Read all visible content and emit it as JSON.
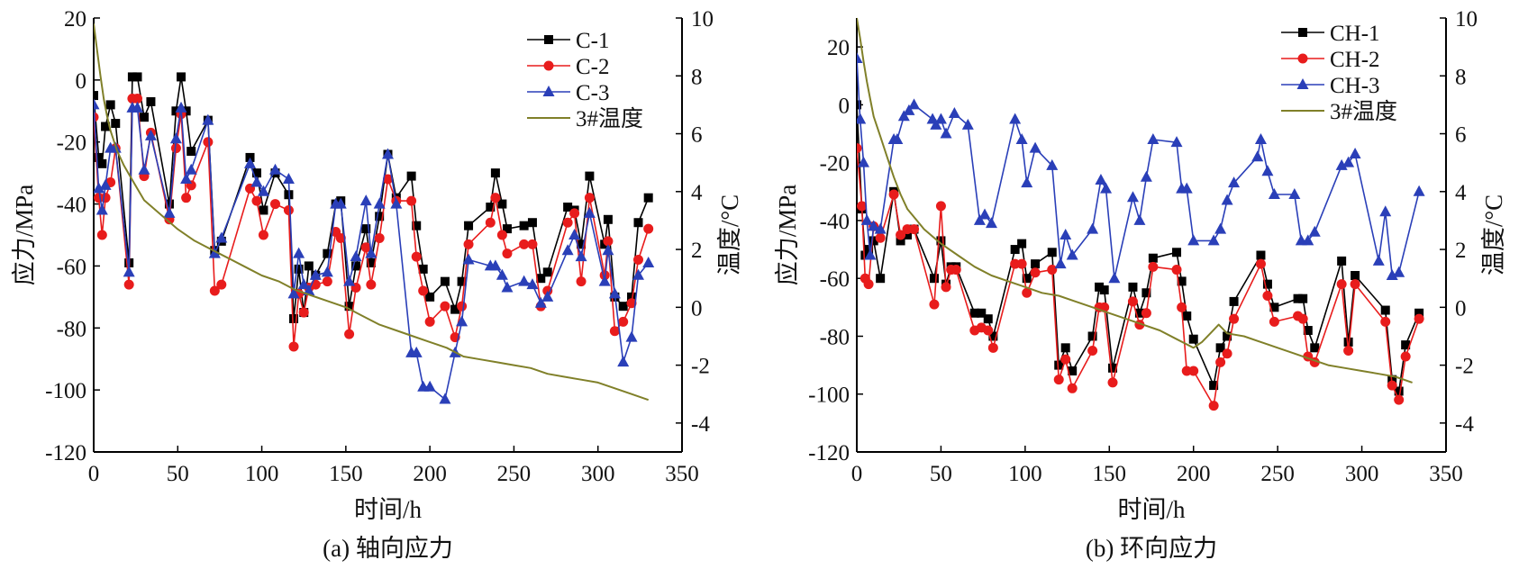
{
  "chart_data": [
    {
      "type": "line",
      "caption": "(a) 轴向应力",
      "xlabel": "时间/h",
      "ylabel": "应力/MPa",
      "y2label": "温度/°C",
      "xlim": [
        0,
        350
      ],
      "ylim": [
        -120,
        20
      ],
      "y2lim": [
        -5,
        10
      ],
      "xticks": [
        0,
        50,
        100,
        150,
        200,
        250,
        300,
        350
      ],
      "yticks": [
        20,
        0,
        -20,
        -40,
        -60,
        -80,
        -100,
        -120
      ],
      "y2ticks": [
        10,
        8,
        6,
        4,
        2,
        0,
        -2,
        -4
      ],
      "legend_position": "top-right",
      "grid": false,
      "series": [
        {
          "name": "C-1",
          "color": "#000000",
          "marker": "square",
          "axis": "left",
          "x": [
            0,
            3,
            5,
            7,
            10,
            13,
            21,
            23,
            26,
            30,
            34,
            45,
            49,
            52,
            55,
            58,
            68,
            72,
            76,
            93,
            97,
            101,
            108,
            116,
            119,
            122,
            125,
            128,
            132,
            139,
            144,
            147,
            152,
            156,
            162,
            165,
            170,
            175,
            180,
            189,
            192,
            196,
            200,
            209,
            215,
            219,
            223,
            236,
            239,
            243,
            246,
            256,
            261,
            266,
            270,
            282,
            286,
            290,
            295,
            304,
            306,
            310,
            315,
            320,
            324,
            330
          ],
          "y": [
            -5,
            -25,
            -27,
            -15,
            -8,
            -14,
            -59,
            1,
            1,
            -12,
            -7,
            -40,
            -10,
            1,
            -10,
            -23,
            -13,
            -55,
            -52,
            -25,
            -30,
            -42,
            -30,
            -37,
            -77,
            -61,
            -75,
            -60,
            -63,
            -56,
            -40,
            -39,
            -73,
            -60,
            -48,
            -59,
            -44,
            -24,
            -38,
            -31,
            -47,
            -61,
            -70,
            -65,
            -74,
            -65,
            -47,
            -41,
            -30,
            -40,
            -48,
            -47,
            -46,
            -64,
            -62,
            -41,
            -42,
            -53,
            -31,
            -53,
            -45,
            -70,
            -73,
            -70,
            -46,
            -38
          ]
        },
        {
          "name": "C-2",
          "color": "#e81c1c",
          "marker": "circle",
          "axis": "left",
          "x": [
            0,
            3,
            5,
            7,
            10,
            13,
            21,
            23,
            26,
            30,
            34,
            45,
            49,
            52,
            55,
            58,
            68,
            72,
            76,
            93,
            97,
            101,
            108,
            116,
            119,
            122,
            125,
            128,
            132,
            139,
            144,
            147,
            152,
            156,
            162,
            165,
            170,
            175,
            180,
            189,
            192,
            196,
            200,
            209,
            215,
            219,
            223,
            236,
            239,
            243,
            246,
            256,
            261,
            266,
            270,
            282,
            286,
            290,
            295,
            304,
            306,
            310,
            315,
            320,
            324,
            330
          ],
          "y": [
            -12,
            -38,
            -50,
            -38,
            -33,
            -22,
            -66,
            -6,
            -6,
            -31,
            -17,
            -45,
            -22,
            -11,
            -38,
            -34,
            -20,
            -68,
            -66,
            -35,
            -39,
            -50,
            -40,
            -42,
            -86,
            -69,
            -75,
            -67,
            -66,
            -65,
            -49,
            -51,
            -82,
            -67,
            -54,
            -66,
            -51,
            -32,
            -39,
            -39,
            -57,
            -68,
            -78,
            -73,
            -83,
            -73,
            -53,
            -46,
            -38,
            -50,
            -56,
            -53,
            -53,
            -73,
            -68,
            -46,
            -43,
            -65,
            -38,
            -63,
            -52,
            -81,
            -78,
            -72,
            -58,
            -48
          ]
        },
        {
          "name": "C-3",
          "color": "#2a3fb8",
          "marker": "triangle",
          "axis": "left",
          "x": [
            0,
            3,
            5,
            7,
            10,
            13,
            21,
            23,
            26,
            30,
            34,
            45,
            49,
            52,
            55,
            58,
            68,
            72,
            76,
            93,
            97,
            101,
            108,
            116,
            119,
            122,
            125,
            128,
            132,
            139,
            144,
            147,
            152,
            156,
            162,
            165,
            170,
            175,
            180,
            189,
            192,
            196,
            200,
            209,
            215,
            219,
            223,
            236,
            239,
            243,
            246,
            256,
            261,
            266,
            270,
            282,
            286,
            290,
            295,
            304,
            306,
            310,
            315,
            320,
            324,
            330
          ],
          "y": [
            -8,
            -35,
            -42,
            -34,
            -22,
            -22,
            -62,
            -9,
            -9,
            -29,
            -18,
            -43,
            -19,
            -9,
            -32,
            -29,
            -13,
            -56,
            -51,
            -27,
            -33,
            -36,
            -29,
            -32,
            -69,
            -56,
            -66,
            -68,
            -63,
            -62,
            -40,
            -40,
            -65,
            -57,
            -39,
            -56,
            -40,
            -24,
            -40,
            -88,
            -88,
            -99,
            -99,
            -103,
            -88,
            -78,
            -58,
            -60,
            -60,
            -63,
            -67,
            -65,
            -66,
            -72,
            -70,
            -55,
            -50,
            -57,
            -43,
            -65,
            -55,
            -69,
            -91,
            -83,
            -63,
            -59
          ]
        },
        {
          "name": "3#温度",
          "color": "#808029",
          "marker": "none",
          "axis": "right",
          "x": [
            0,
            2,
            4,
            6,
            8,
            10,
            14,
            18,
            22,
            26,
            30,
            40,
            50,
            60,
            70,
            80,
            90,
            100,
            110,
            120,
            130,
            140,
            150,
            160,
            170,
            180,
            190,
            200,
            210,
            220,
            230,
            240,
            250,
            260,
            270,
            280,
            290,
            300,
            310,
            320,
            330
          ],
          "y": [
            9.8,
            8.9,
            8.0,
            7.2,
            6.6,
            6.1,
            5.4,
            4.9,
            4.5,
            4.1,
            3.7,
            3.2,
            2.7,
            2.3,
            2.0,
            1.7,
            1.4,
            1.1,
            0.9,
            0.6,
            0.4,
            0.2,
            0.0,
            -0.3,
            -0.6,
            -0.8,
            -1.0,
            -1.2,
            -1.4,
            -1.7,
            -1.8,
            -1.9,
            -2.0,
            -2.1,
            -2.3,
            -2.4,
            -2.5,
            -2.6,
            -2.8,
            -3.0,
            -3.2
          ]
        }
      ]
    },
    {
      "type": "line",
      "caption": "(b) 环向应力",
      "xlabel": "时间/h",
      "ylabel": "应力/MPa",
      "y2label": "温度/°C",
      "xlim": [
        0,
        350
      ],
      "ylim": [
        -120,
        30
      ],
      "y2lim": [
        -5,
        10
      ],
      "xticks": [
        0,
        50,
        100,
        150,
        200,
        250,
        300,
        350
      ],
      "yticks": [
        20,
        0,
        -20,
        -40,
        -60,
        -80,
        -100,
        -120
      ],
      "y2ticks": [
        10,
        8,
        6,
        4,
        2,
        0,
        -2,
        -4
      ],
      "legend_position": "top-right",
      "grid": false,
      "series": [
        {
          "name": "CH-1",
          "color": "#000000",
          "marker": "square",
          "axis": "left",
          "x": [
            0,
            3,
            5,
            7,
            10,
            14,
            22,
            26,
            30,
            34,
            46,
            50,
            53,
            56,
            59,
            70,
            74,
            78,
            81,
            94,
            98,
            101,
            106,
            116,
            120,
            124,
            128,
            140,
            144,
            147,
            152,
            164,
            168,
            172,
            176,
            190,
            193,
            196,
            200,
            212,
            216,
            220,
            224,
            240,
            244,
            248,
            262,
            265,
            268,
            272,
            288,
            292,
            296,
            314,
            318,
            322,
            326,
            334
          ],
          "y": [
            0,
            -36,
            -52,
            -50,
            -47,
            -60,
            -30,
            -47,
            -45,
            -43,
            -60,
            -47,
            -62,
            -56,
            -56,
            -72,
            -72,
            -74,
            -80,
            -50,
            -48,
            -60,
            -55,
            -51,
            -90,
            -84,
            -92,
            -80,
            -63,
            -64,
            -91,
            -63,
            -72,
            -65,
            -53,
            -51,
            -61,
            -73,
            -81,
            -97,
            -84,
            -80,
            -68,
            -52,
            -62,
            -70,
            -67,
            -67,
            -78,
            -84,
            -54,
            -82,
            -59,
            -71,
            -95,
            -99,
            -83,
            -72
          ]
        },
        {
          "name": "CH-2",
          "color": "#e81c1c",
          "marker": "circle",
          "axis": "left",
          "x": [
            0,
            3,
            5,
            7,
            10,
            14,
            22,
            26,
            30,
            34,
            46,
            50,
            53,
            56,
            59,
            70,
            74,
            78,
            81,
            94,
            98,
            101,
            106,
            116,
            120,
            124,
            128,
            140,
            144,
            147,
            152,
            164,
            168,
            172,
            176,
            190,
            193,
            196,
            200,
            212,
            216,
            220,
            224,
            240,
            244,
            248,
            262,
            265,
            268,
            272,
            288,
            292,
            296,
            314,
            318,
            322,
            326,
            334
          ],
          "y": [
            -15,
            -35,
            -60,
            -62,
            -42,
            -46,
            -31,
            -45,
            -43,
            -43,
            -69,
            -35,
            -63,
            -57,
            -57,
            -78,
            -77,
            -78,
            -84,
            -55,
            -55,
            -65,
            -58,
            -57,
            -95,
            -88,
            -98,
            -85,
            -70,
            -70,
            -96,
            -68,
            -76,
            -72,
            -56,
            -57,
            -70,
            -92,
            -92,
            -104,
            -89,
            -86,
            -74,
            -55,
            -66,
            -75,
            -73,
            -74,
            -87,
            -89,
            -62,
            -85,
            -62,
            -75,
            -97,
            -102,
            -87,
            -74
          ]
        },
        {
          "name": "CH-3",
          "color": "#2a3fb8",
          "marker": "triangle",
          "axis": "left",
          "x": [
            0,
            2,
            4,
            6,
            8,
            10,
            14,
            22,
            24,
            28,
            31,
            34,
            45,
            47,
            50,
            53,
            58,
            66,
            73,
            76,
            80,
            94,
            98,
            101,
            106,
            116,
            121,
            124,
            128,
            140,
            145,
            148,
            153,
            164,
            168,
            172,
            176,
            190,
            193,
            196,
            200,
            212,
            216,
            220,
            224,
            238,
            240,
            244,
            248,
            260,
            264,
            268,
            272,
            288,
            292,
            296,
            310,
            314,
            318,
            322,
            334
          ],
          "y": [
            16,
            -5,
            -20,
            -40,
            -52,
            -42,
            -43,
            -12,
            -12,
            -4,
            -2,
            0,
            -5,
            -7,
            -5,
            -10,
            -3,
            -7,
            -40,
            -38,
            -41,
            -5,
            -12,
            -27,
            -15,
            -21,
            -55,
            -45,
            -52,
            -43,
            -26,
            -29,
            -60,
            -32,
            -40,
            -25,
            -12,
            -13,
            -29,
            -29,
            -47,
            -47,
            -43,
            -33,
            -27,
            -18,
            -12,
            -23,
            -31,
            -31,
            -47,
            -47,
            -44,
            -21,
            -20,
            -17,
            -54,
            -37,
            -59,
            -58,
            -30
          ]
        },
        {
          "name": "3#温度",
          "color": "#808029",
          "marker": "none",
          "axis": "right",
          "x": [
            0,
            2,
            4,
            6,
            8,
            10,
            14,
            18,
            22,
            26,
            30,
            40,
            50,
            60,
            70,
            80,
            90,
            100,
            110,
            120,
            130,
            140,
            150,
            160,
            170,
            180,
            190,
            200,
            205,
            210,
            215,
            220,
            230,
            240,
            250,
            260,
            270,
            280,
            290,
            300,
            310,
            320,
            330
          ],
          "y": [
            10.0,
            9.3,
            8.5,
            7.8,
            7.2,
            6.6,
            5.9,
            5.2,
            4.5,
            3.9,
            3.4,
            2.7,
            2.2,
            1.8,
            1.4,
            1.1,
            0.9,
            0.7,
            0.5,
            0.4,
            0.2,
            0.0,
            -0.2,
            -0.4,
            -0.6,
            -0.8,
            -1.1,
            -1.4,
            -1.2,
            -0.9,
            -0.6,
            -0.9,
            -1.0,
            -1.2,
            -1.4,
            -1.6,
            -1.8,
            -2.0,
            -2.1,
            -2.2,
            -2.3,
            -2.4,
            -2.6
          ]
        }
      ]
    }
  ]
}
